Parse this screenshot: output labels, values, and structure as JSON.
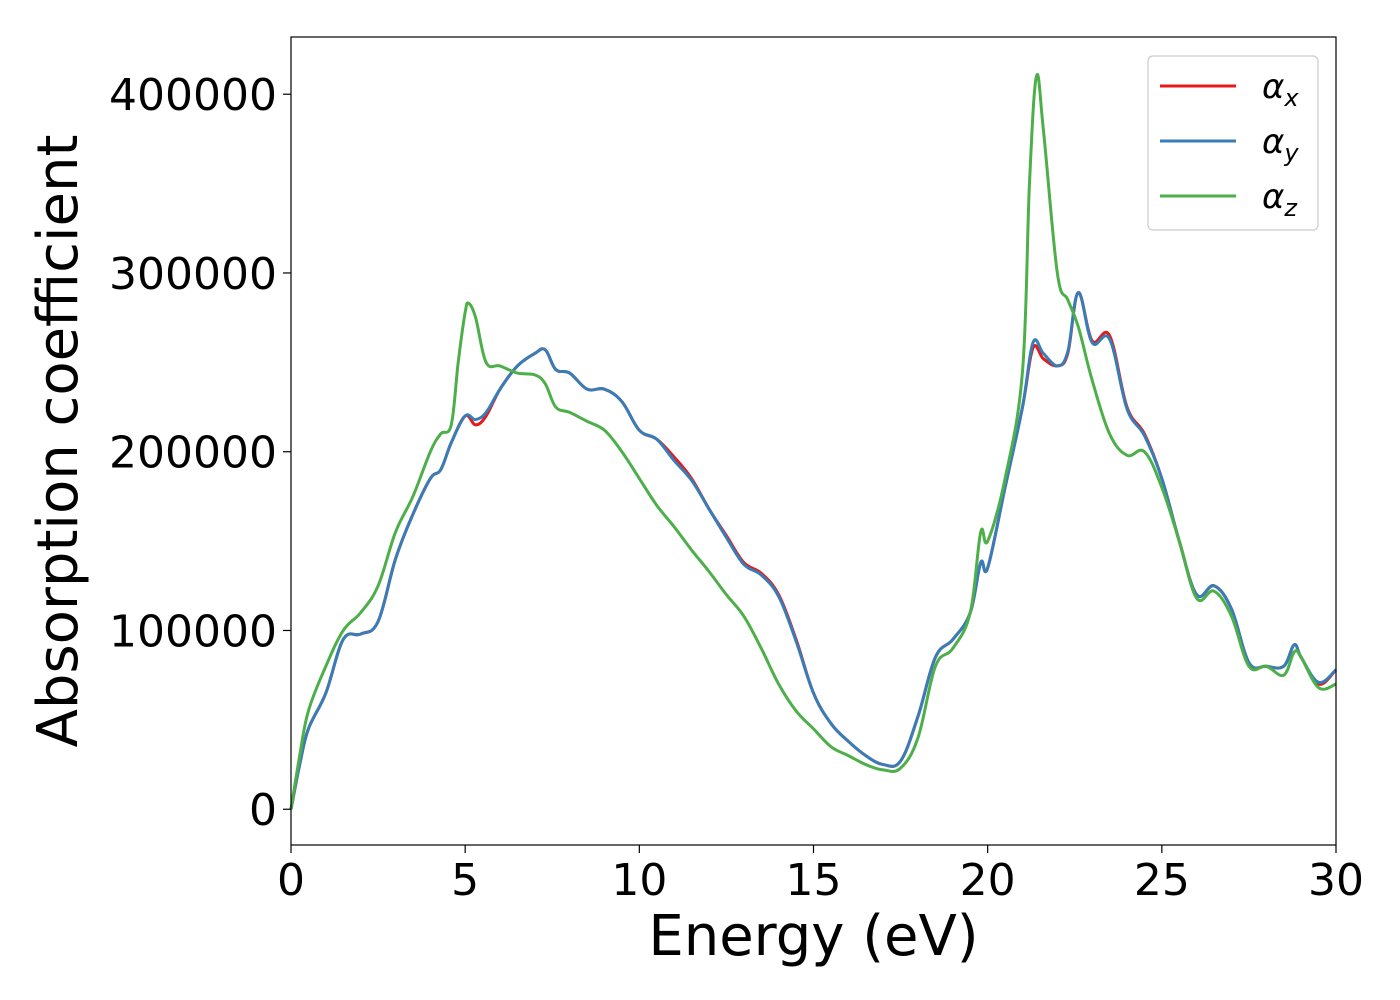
{
  "chart_data": {
    "type": "line",
    "title": "",
    "xlabel": "Energy (eV)",
    "ylabel": "Absorption coefficient",
    "xlim": [
      0,
      30
    ],
    "ylim": [
      -20000,
      432000
    ],
    "xticks": [
      0,
      5,
      10,
      15,
      20,
      25,
      30
    ],
    "xtick_labels": [
      "0",
      "5",
      "10",
      "15",
      "20",
      "25",
      "30"
    ],
    "yticks": [
      0,
      100000,
      200000,
      300000,
      400000
    ],
    "ytick_labels": [
      "0",
      "100000",
      "200000",
      "300000",
      "400000"
    ],
    "grid": false,
    "legend_position": "top-right",
    "series": [
      {
        "name": "α_x",
        "symbol": "α",
        "subscript": "x",
        "color": "#e41a1c",
        "x": [
          0,
          0.25,
          0.5,
          1.0,
          1.5,
          2.0,
          2.5,
          3.0,
          3.5,
          4.0,
          4.3,
          4.6,
          5.0,
          5.3,
          5.6,
          6.0,
          6.5,
          7.0,
          7.3,
          7.6,
          8.0,
          8.5,
          9.0,
          9.5,
          10.0,
          10.5,
          11.0,
          11.5,
          12.0,
          12.5,
          13.0,
          13.5,
          14.0,
          14.5,
          15.0,
          15.5,
          16.0,
          16.5,
          17.0,
          17.5,
          18.0,
          18.5,
          19.0,
          19.5,
          19.8,
          20.0,
          20.5,
          21.0,
          21.3,
          21.6,
          22.0,
          22.3,
          22.6,
          23.0,
          23.5,
          24.0,
          24.5,
          25.0,
          25.5,
          26.0,
          26.5,
          27.0,
          27.5,
          28.0,
          28.5,
          28.8,
          29.0,
          29.5,
          30.0
        ],
        "y": [
          0,
          25000,
          45000,
          65000,
          95000,
          98000,
          105000,
          140000,
          165000,
          185000,
          190000,
          205000,
          220000,
          215000,
          220000,
          235000,
          248000,
          255000,
          257000,
          246000,
          244000,
          235000,
          235000,
          228000,
          212000,
          207000,
          197000,
          185000,
          168000,
          153000,
          138000,
          132000,
          120000,
          95000,
          65000,
          48000,
          38000,
          30000,
          25000,
          27000,
          52000,
          85000,
          95000,
          110000,
          138000,
          135000,
          180000,
          225000,
          258000,
          252000,
          248000,
          255000,
          289000,
          262000,
          265000,
          225000,
          210000,
          185000,
          150000,
          120000,
          125000,
          112000,
          82000,
          80000,
          80000,
          92000,
          85000,
          70000,
          78000
        ]
      },
      {
        "name": "α_y",
        "symbol": "α",
        "subscript": "y",
        "color": "#377eb8",
        "x": [
          0,
          0.25,
          0.5,
          1.0,
          1.5,
          2.0,
          2.5,
          3.0,
          3.5,
          4.0,
          4.3,
          4.6,
          5.0,
          5.3,
          5.6,
          6.0,
          6.5,
          7.0,
          7.3,
          7.6,
          8.0,
          8.5,
          9.0,
          9.5,
          10.0,
          10.5,
          11.0,
          11.5,
          12.0,
          12.5,
          13.0,
          13.5,
          14.0,
          14.5,
          15.0,
          15.5,
          16.0,
          16.5,
          17.0,
          17.5,
          18.0,
          18.5,
          19.0,
          19.5,
          19.8,
          20.0,
          20.5,
          21.0,
          21.3,
          21.6,
          22.0,
          22.3,
          22.6,
          23.0,
          23.5,
          24.0,
          24.5,
          25.0,
          25.5,
          26.0,
          26.5,
          27.0,
          27.5,
          28.0,
          28.5,
          28.8,
          29.0,
          29.5,
          30.0
        ],
        "y": [
          0,
          25000,
          45000,
          65000,
          95000,
          98000,
          105000,
          140000,
          165000,
          185000,
          190000,
          205000,
          220000,
          218000,
          222000,
          235000,
          248000,
          255000,
          257000,
          246000,
          244000,
          235000,
          235000,
          228000,
          212000,
          207000,
          195000,
          184000,
          168000,
          152000,
          137000,
          131000,
          119000,
          94000,
          65000,
          48000,
          38000,
          30000,
          25000,
          27000,
          52000,
          85000,
          95000,
          110000,
          138000,
          135000,
          180000,
          225000,
          261000,
          255000,
          248000,
          256000,
          289000,
          261000,
          263000,
          224000,
          209000,
          185000,
          150000,
          120000,
          125000,
          112000,
          82000,
          80000,
          80000,
          92000,
          85000,
          71000,
          78000
        ]
      },
      {
        "name": "α_z",
        "symbol": "α",
        "subscript": "z",
        "color": "#4daf4a",
        "x": [
          0,
          0.25,
          0.5,
          1.0,
          1.5,
          2.0,
          2.5,
          3.0,
          3.5,
          4.0,
          4.3,
          4.6,
          4.8,
          5.0,
          5.1,
          5.3,
          5.6,
          6.0,
          6.5,
          7.0,
          7.3,
          7.6,
          8.0,
          8.5,
          9.0,
          9.5,
          10.0,
          10.5,
          11.0,
          11.5,
          12.0,
          12.5,
          13.0,
          13.5,
          14.0,
          14.5,
          15.0,
          15.5,
          16.0,
          16.5,
          17.0,
          17.5,
          18.0,
          18.5,
          19.0,
          19.5,
          19.8,
          20.0,
          20.5,
          21.0,
          21.2,
          21.4,
          21.6,
          22.0,
          22.3,
          22.6,
          23.0,
          23.5,
          24.0,
          24.5,
          25.0,
          25.5,
          26.0,
          26.5,
          27.0,
          27.5,
          28.0,
          28.5,
          28.8,
          29.0,
          29.5,
          30.0
        ],
        "y": [
          0,
          30000,
          55000,
          80000,
          100000,
          110000,
          125000,
          155000,
          175000,
          200000,
          210000,
          215000,
          250000,
          278000,
          283000,
          275000,
          250000,
          248000,
          244000,
          243000,
          238000,
          225000,
          222000,
          217000,
          212000,
          200000,
          185000,
          170000,
          158000,
          145000,
          133000,
          120000,
          108000,
          90000,
          70000,
          55000,
          45000,
          35000,
          30000,
          25000,
          22000,
          23000,
          40000,
          80000,
          90000,
          110000,
          155000,
          150000,
          185000,
          245000,
          350000,
          410000,
          380000,
          300000,
          285000,
          270000,
          240000,
          210000,
          198000,
          200000,
          180000,
          150000,
          118000,
          122000,
          108000,
          80000,
          80000,
          75000,
          88000,
          85000,
          68000,
          70000
        ]
      }
    ]
  }
}
